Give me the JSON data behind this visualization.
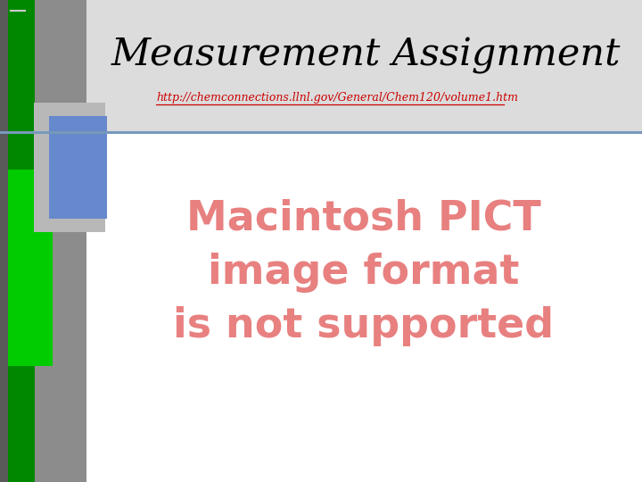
{
  "title": "Measurement Assignment",
  "url": "http://chemconnections.llnl.gov/General/Chem120/volume1.htm",
  "placeholder_text": [
    "Macintosh PICT",
    "image format",
    "is not supported"
  ],
  "bg_color": "#ffffff",
  "title_color": "#000000",
  "url_color": "#cc0000",
  "placeholder_color": "#e88080",
  "separator_line_color": "#7799bb",
  "header_bg": "#e0e0e0"
}
